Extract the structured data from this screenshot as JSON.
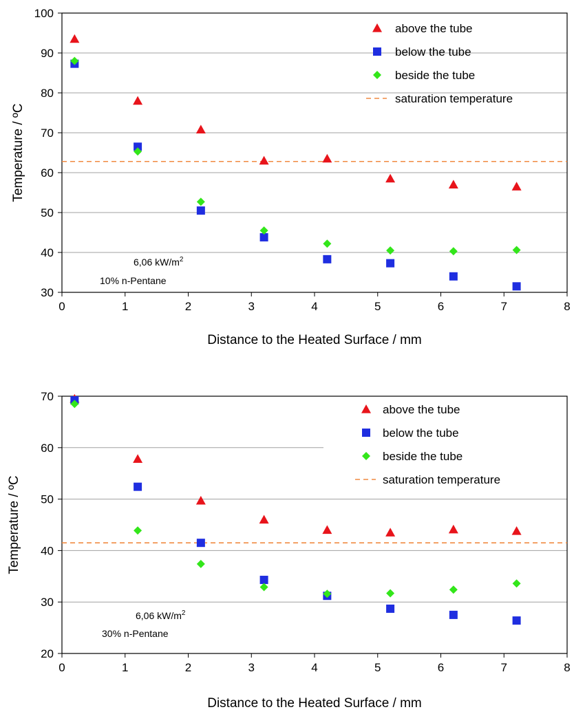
{
  "chart_data": [
    {
      "type": "scatter",
      "xlabel": "Distance to the Heated Surface / mm",
      "ylabel": "Temperature / ºC",
      "xlim": [
        0,
        8
      ],
      "ylim": [
        30,
        100
      ],
      "xticks": [
        "0",
        "1",
        "2",
        "3",
        "4",
        "5",
        "6",
        "7",
        "8"
      ],
      "yticks": [
        "30",
        "40",
        "50",
        "60",
        "70",
        "80",
        "90",
        "100"
      ],
      "grid": "horizontal",
      "legend_position": "top-right",
      "annotations": {
        "line1": "6,06 kW/m",
        "line1_sup": "2",
        "line2": "10% n-Pentane"
      },
      "series": [
        {
          "name": "above the tube",
          "marker": "triangle",
          "color": "#e8141b",
          "x": [
            0.2,
            1.2,
            2.2,
            3.2,
            4.2,
            5.2,
            6.2,
            7.2
          ],
          "y": [
            93.5,
            78,
            70.8,
            63,
            63.5,
            58.5,
            57,
            56.5
          ]
        },
        {
          "name": "below the tube",
          "marker": "square",
          "color": "#1f2ee0",
          "x": [
            0.2,
            1.2,
            2.2,
            3.2,
            4.2,
            5.2,
            6.2,
            7.2
          ],
          "y": [
            87.3,
            66.5,
            50.5,
            43.8,
            38.3,
            37.3,
            34,
            31.5
          ]
        },
        {
          "name": "beside the tube",
          "marker": "diamond",
          "color": "#33e61a",
          "x": [
            0.2,
            1.2,
            2.2,
            3.2,
            4.2,
            5.2,
            6.2,
            7.2
          ],
          "y": [
            88,
            65.3,
            52.7,
            45.5,
            42.2,
            40.5,
            40.3,
            40.6
          ]
        },
        {
          "name": "saturation temperature",
          "marker": "dashed-line",
          "color": "#f08a40",
          "y_constant": 62.8
        }
      ]
    },
    {
      "type": "scatter",
      "xlabel": "Distance to the Heated Surface / mm",
      "ylabel": "Temperature / ºC",
      "xlim": [
        0,
        8
      ],
      "ylim": [
        20,
        70
      ],
      "xticks": [
        "0",
        "1",
        "2",
        "3",
        "4",
        "5",
        "6",
        "7",
        "8"
      ],
      "yticks": [
        "20",
        "30",
        "40",
        "50",
        "60",
        "70"
      ],
      "grid": "horizontal",
      "legend_position": "top-right",
      "annotations": {
        "line1": "6,06 kW/m",
        "line1_sup": "2",
        "line2": "30% n-Pentane"
      },
      "series": [
        {
          "name": "above the tube",
          "marker": "triangle",
          "color": "#e8141b",
          "x": [
            0.2,
            1.2,
            2.2,
            3.2,
            4.2,
            5.2,
            6.2,
            7.2
          ],
          "y": [
            69.5,
            57.8,
            49.7,
            46,
            44,
            43.5,
            44.1,
            43.8
          ]
        },
        {
          "name": "below the tube",
          "marker": "square",
          "color": "#1f2ee0",
          "x": [
            0.2,
            1.2,
            2.2,
            3.2,
            4.2,
            5.2,
            6.2,
            7.2
          ],
          "y": [
            69.2,
            52.4,
            41.5,
            34.3,
            31.2,
            28.7,
            27.5,
            26.4
          ]
        },
        {
          "name": "beside the tube",
          "marker": "diamond",
          "color": "#33e61a",
          "x": [
            0.2,
            1.2,
            2.2,
            3.2,
            4.2,
            5.2,
            6.2,
            7.2
          ],
          "y": [
            68.5,
            43.9,
            37.4,
            32.9,
            31.6,
            31.7,
            32.4,
            33.6
          ]
        },
        {
          "name": "saturation temperature",
          "marker": "dashed-line",
          "color": "#f08a40",
          "y_constant": 41.5
        }
      ]
    }
  ]
}
